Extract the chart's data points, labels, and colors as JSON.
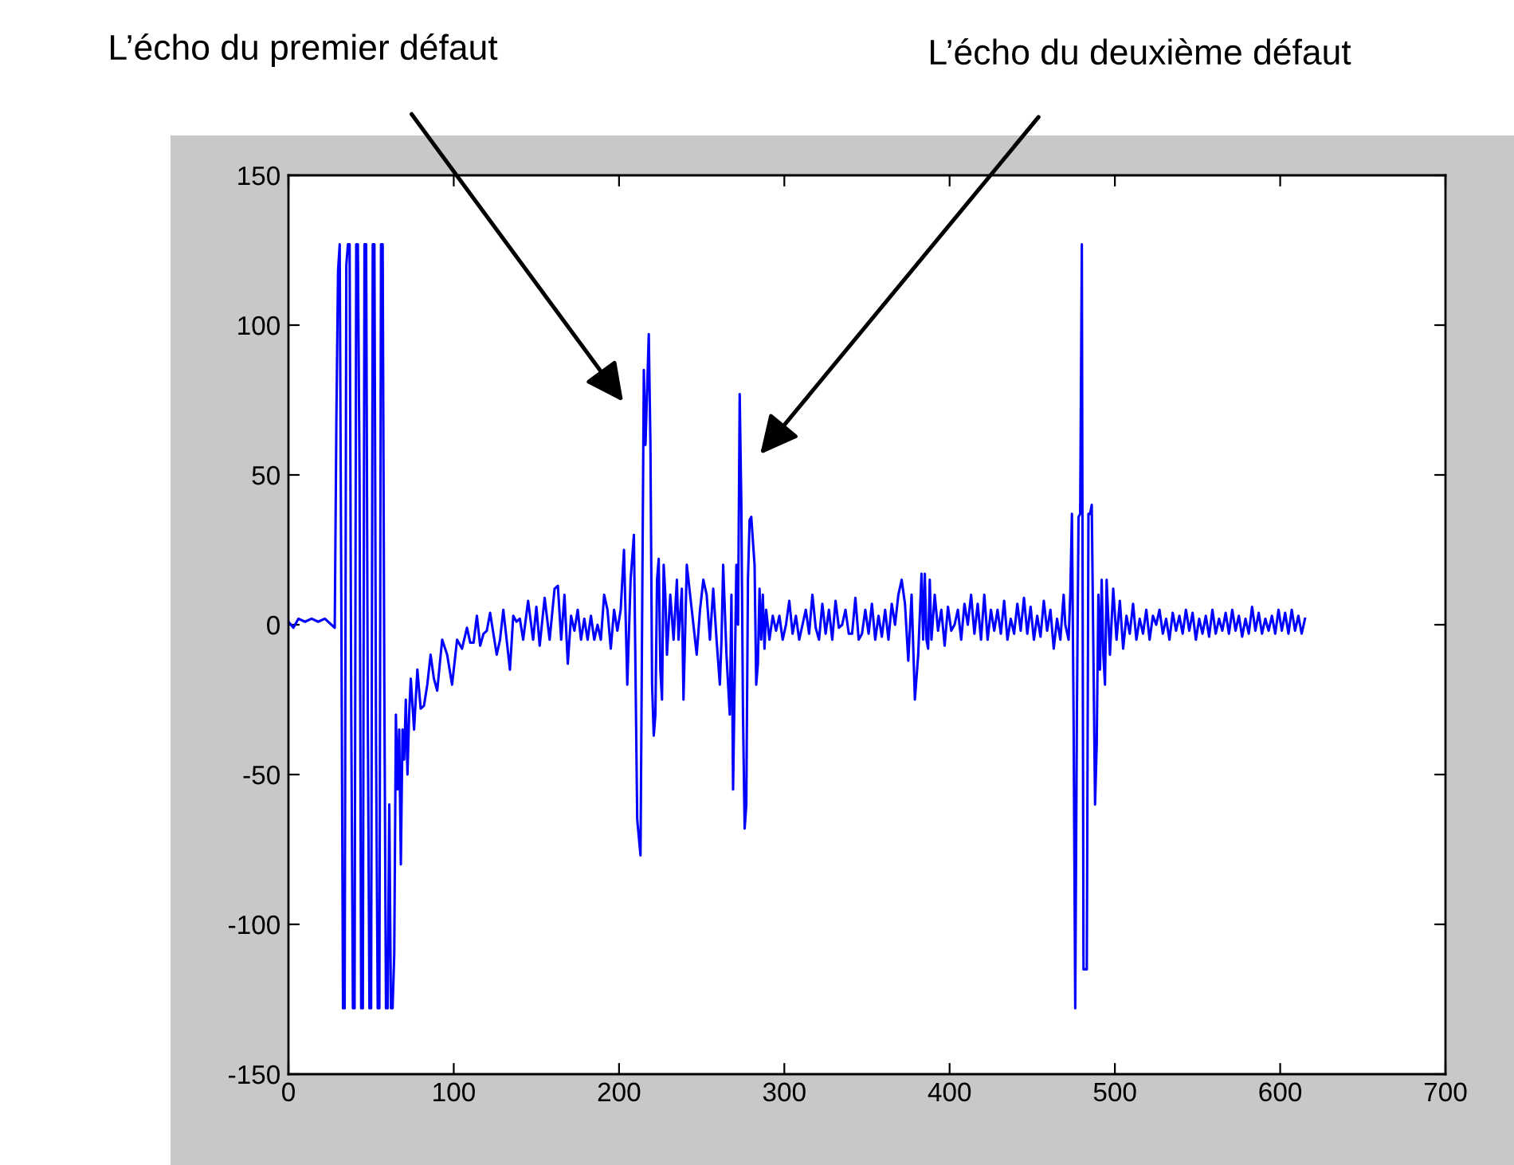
{
  "chart_data": {
    "type": "line",
    "x": [
      0,
      3,
      6,
      10,
      14,
      18,
      22,
      26,
      28,
      29,
      30,
      31,
      32,
      33,
      34,
      35,
      36,
      37,
      38,
      39,
      40,
      41,
      42,
      43,
      44,
      45,
      46,
      47,
      48,
      49,
      50,
      51,
      52,
      53,
      54,
      55,
      56,
      57,
      58,
      59,
      60,
      61,
      62,
      63,
      64,
      65,
      66,
      67,
      68,
      69,
      70,
      71,
      72,
      73,
      74,
      76,
      78,
      80,
      82,
      84,
      86,
      88,
      90,
      93,
      96,
      99,
      102,
      105,
      108,
      110,
      112,
      114,
      116,
      118,
      120,
      122,
      124,
      126,
      128,
      130,
      132,
      134,
      136,
      138,
      140,
      142,
      145,
      148,
      150,
      152,
      155,
      158,
      161,
      163,
      165,
      167,
      169,
      171,
      173,
      175,
      177,
      179,
      181,
      183,
      185,
      187,
      189,
      191,
      193,
      195,
      197,
      199,
      201,
      203,
      205,
      207,
      209,
      211,
      213,
      215,
      216,
      218,
      219,
      220,
      221,
      222,
      223,
      224,
      225,
      226,
      227,
      228,
      229,
      231,
      233,
      235,
      236,
      238,
      239,
      241,
      243,
      245,
      247,
      249,
      251,
      253,
      255,
      257,
      259,
      261,
      262,
      263,
      265,
      267,
      268,
      269,
      271,
      272,
      273,
      274,
      275,
      276,
      277,
      278,
      279,
      280,
      282,
      283,
      284,
      285,
      286,
      287,
      288,
      289,
      291,
      293,
      295,
      297,
      299,
      301,
      303,
      305,
      307,
      309,
      311,
      313,
      315,
      317,
      319,
      321,
      323,
      325,
      327,
      329,
      331,
      333,
      335,
      337,
      339,
      341,
      343,
      345,
      347,
      349,
      351,
      353,
      355,
      357,
      359,
      361,
      363,
      365,
      367,
      369,
      371,
      373,
      375,
      377,
      379,
      381,
      383,
      384,
      385,
      386,
      387,
      388,
      389,
      391,
      393,
      395,
      397,
      399,
      401,
      403,
      405,
      407,
      409,
      411,
      413,
      415,
      417,
      419,
      421,
      423,
      425,
      427,
      429,
      431,
      433,
      435,
      437,
      439,
      441,
      443,
      445,
      447,
      449,
      451,
      453,
      455,
      457,
      459,
      461,
      463,
      465,
      467,
      469,
      470,
      472,
      473,
      474,
      475,
      476,
      477,
      478,
      479,
      480,
      481,
      482,
      483,
      484,
      485,
      486,
      487,
      488,
      489,
      490,
      491,
      492,
      493,
      494,
      495,
      497,
      499,
      501,
      503,
      505,
      507,
      509,
      511,
      513,
      515,
      517,
      519,
      521,
      523,
      525,
      527,
      529,
      531,
      533,
      535,
      537,
      539,
      541,
      543,
      545,
      547,
      549,
      551,
      553,
      555,
      557,
      559,
      561,
      563,
      565,
      567,
      569,
      571,
      573,
      575,
      577,
      579,
      581,
      583,
      585,
      587,
      589,
      591,
      593,
      595,
      597,
      599,
      601,
      603,
      605,
      607,
      609,
      611,
      613,
      615
    ],
    "values": [
      1,
      -1,
      2,
      1,
      2,
      1,
      2,
      0,
      -1,
      69,
      118,
      127,
      5,
      -128,
      -128,
      120,
      127,
      127,
      -30,
      -128,
      -128,
      127,
      127,
      50,
      -128,
      -128,
      127,
      127,
      -30,
      -128,
      -128,
      127,
      127,
      -40,
      -128,
      -128,
      127,
      127,
      -20,
      -128,
      -128,
      -60,
      -128,
      -128,
      -110,
      -30,
      -55,
      -35,
      -80,
      -35,
      -45,
      -25,
      -50,
      -30,
      -18,
      -35,
      -15,
      -28,
      -27,
      -20,
      -10,
      -18,
      -22,
      -5,
      -10,
      -20,
      -5,
      -8,
      -1,
      -6,
      -6,
      3,
      -7,
      -3,
      -2,
      4,
      -3,
      -10,
      -5,
      5,
      -5,
      -15,
      3,
      1,
      2,
      -5,
      8,
      -5,
      6,
      -7,
      9,
      -5,
      12,
      13,
      -5,
      10,
      -13,
      3,
      -2,
      5,
      -5,
      2,
      -5,
      3,
      -5,
      0,
      -5,
      10,
      5,
      -8,
      5,
      -2,
      5,
      25,
      -20,
      15,
      30,
      -65,
      -77,
      85,
      60,
      97,
      60,
      -20,
      -37,
      -30,
      15,
      22,
      -15,
      -25,
      20,
      10,
      -10,
      10,
      -5,
      15,
      -5,
      12,
      -25,
      20,
      10,
      0,
      -10,
      5,
      15,
      10,
      -5,
      12,
      -5,
      -20,
      -5,
      20,
      -10,
      -30,
      10,
      -55,
      20,
      0,
      77,
      40,
      -30,
      -68,
      -60,
      15,
      35,
      36,
      20,
      -20,
      -13,
      12,
      -5,
      10,
      -8,
      5,
      -5,
      3,
      -2,
      3,
      -5,
      0,
      8,
      -3,
      3,
      -5,
      0,
      5,
      -3,
      10,
      -1,
      -5,
      7,
      -3,
      5,
      -5,
      8,
      -1,
      0,
      5,
      -3,
      -3,
      9,
      -5,
      -3,
      5,
      -3,
      7,
      -5,
      3,
      -4,
      5,
      -5,
      7,
      0,
      10,
      15,
      7,
      -12,
      10,
      -25,
      -10,
      17,
      -5,
      17,
      -5,
      -8,
      15,
      -5,
      10,
      -2,
      5,
      -7,
      6,
      -2,
      0,
      5,
      -5,
      7,
      0,
      10,
      -3,
      7,
      -5,
      10,
      -5,
      5,
      -2,
      5,
      -3,
      8,
      -5,
      2,
      -3,
      7,
      -2,
      9,
      -3,
      6,
      -5,
      3,
      -4,
      8,
      -2,
      5,
      -8,
      2,
      -5,
      10,
      0,
      -5,
      10,
      37,
      -30,
      -128,
      -30,
      36,
      37,
      127,
      -115,
      -115,
      -115,
      37,
      37,
      40,
      -10,
      -60,
      -40,
      10,
      -15,
      15,
      -10,
      -20,
      15,
      -10,
      12,
      -5,
      8,
      -8,
      3,
      -3,
      7,
      -5,
      2,
      -3,
      5,
      -5,
      3,
      0,
      5,
      -3,
      2,
      -5,
      4,
      -2,
      3,
      -3,
      5,
      -2,
      4,
      -5,
      2,
      -3,
      3,
      -4,
      5,
      -3,
      2,
      -2,
      4,
      -3,
      5,
      -2,
      3,
      -4,
      2,
      -3,
      6,
      -2,
      4,
      -3,
      2,
      -2,
      3,
      -3,
      5,
      -2,
      4,
      -3,
      5,
      -2,
      3,
      -3,
      2
    ],
    "color": "#0000ff",
    "xlim": [
      0,
      700
    ],
    "xticks": [
      0,
      100,
      200,
      300,
      400,
      500,
      600,
      700
    ],
    "ylim": [
      -150,
      150
    ],
    "yticks": [
      -150,
      -100,
      -50,
      0,
      50,
      100,
      150
    ],
    "grid": false,
    "marker": "none",
    "line_style": "solid",
    "annotations": [
      "L’écho du premier défaut",
      "L’écho du deuxième défaut"
    ]
  }
}
